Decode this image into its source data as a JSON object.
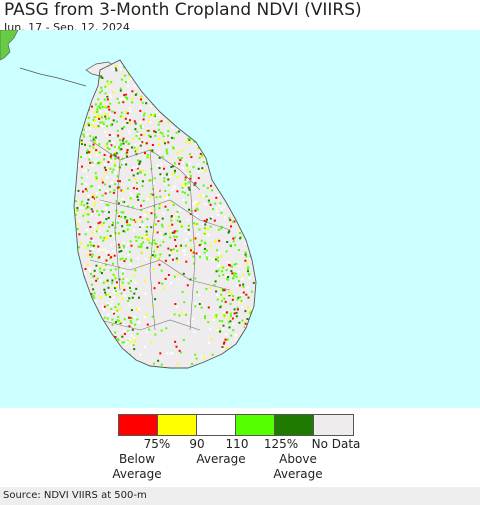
{
  "title": "PASG from 3-Month Cropland NDVI (VIIRS)",
  "subtitle": "Jun. 17 - Sep. 12, 2024",
  "colors": {
    "ocean": "#ccffff",
    "land_no_data": "#eeecec",
    "border": "#555555"
  },
  "legend": {
    "swatches": [
      {
        "color": "#ff0000"
      },
      {
        "color": "#ffff00"
      },
      {
        "color": "#ffffff"
      },
      {
        "color": "#55ff00"
      },
      {
        "color": "#1e7a00"
      },
      {
        "color": "#eeecec"
      }
    ],
    "ticks": [
      "75%",
      "90",
      "110",
      "125%",
      "No Data"
    ],
    "captions": {
      "below": [
        "Below",
        "Average"
      ],
      "average": "Average",
      "above": [
        "Above",
        "Average"
      ]
    }
  },
  "footer": "Source: NDVI VIIRS at 500-m"
}
